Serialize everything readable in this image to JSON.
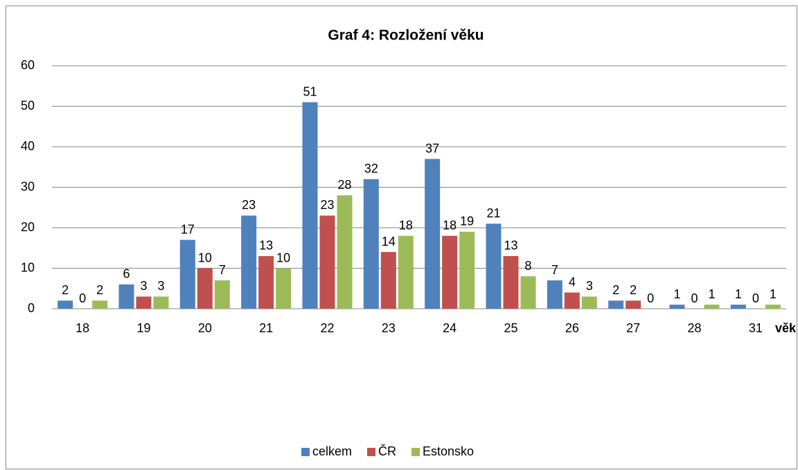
{
  "chart_data": {
    "type": "bar",
    "title": "Graf 4: Rozložení věku",
    "x_label": "věk",
    "categories": [
      "18",
      "19",
      "20",
      "21",
      "22",
      "23",
      "24",
      "25",
      "26",
      "27",
      "28",
      "31"
    ],
    "series": [
      {
        "name": "celkem",
        "color": "#4f81bd",
        "values": [
          2,
          6,
          17,
          23,
          51,
          32,
          37,
          21,
          7,
          2,
          1,
          1
        ]
      },
      {
        "name": "ČR",
        "color": "#c0504d",
        "values": [
          0,
          3,
          10,
          13,
          23,
          14,
          18,
          13,
          4,
          2,
          0,
          0
        ]
      },
      {
        "name": "Estonsko",
        "color": "#9bbb59",
        "values": [
          2,
          3,
          7,
          10,
          28,
          18,
          19,
          8,
          3,
          0,
          1,
          1
        ]
      }
    ],
    "ylim": [
      0,
      60
    ],
    "yticks": [
      0,
      10,
      20,
      30,
      40,
      50,
      60
    ],
    "grid": true,
    "legend": "bottom"
  }
}
